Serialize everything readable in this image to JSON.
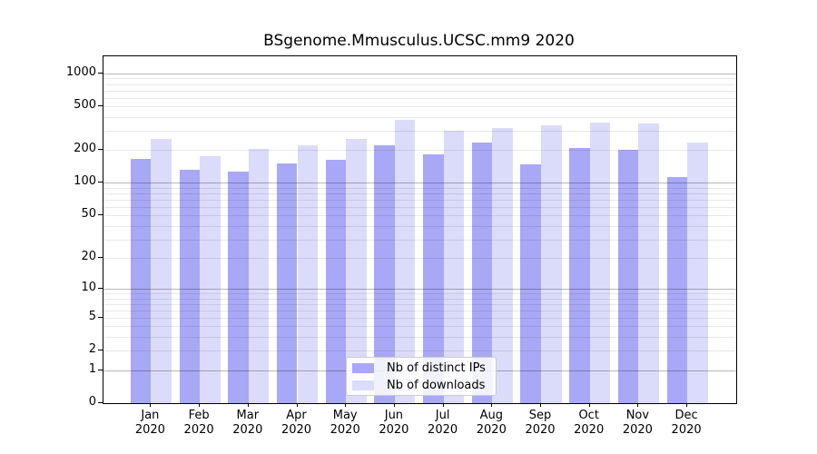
{
  "figure": {
    "title": "BSgenome.Mmusculus.UCSC.mm9 2020"
  },
  "chart_data": {
    "type": "bar",
    "title": "BSgenome.Mmusculus.UCSC.mm9 2020",
    "categories": [
      "Jan",
      "Feb",
      "Mar",
      "Apr",
      "May",
      "Jun",
      "Jul",
      "Aug",
      "Sep",
      "Oct",
      "Nov",
      "Dec"
    ],
    "year_label": "2020",
    "series": [
      {
        "name": "Nb of distinct IPs",
        "color": "#a8a8f6",
        "values": [
          165,
          132,
          126,
          150,
          162,
          222,
          182,
          236,
          148,
          210,
          200,
          114
        ]
      },
      {
        "name": "Nb of downloads",
        "color": "#dbdbfa",
        "values": [
          253,
          177,
          204,
          220,
          255,
          374,
          300,
          315,
          339,
          355,
          348,
          232
        ]
      }
    ],
    "yscale": "log1p",
    "ylim": [
      0,
      1430
    ],
    "yticks": [
      0,
      1,
      2,
      5,
      10,
      20,
      50,
      100,
      200,
      500,
      1000
    ],
    "grid": {
      "major": [
        1,
        10,
        100,
        1000
      ],
      "minor": [
        2,
        3,
        4,
        5,
        6,
        7,
        8,
        9,
        20,
        30,
        40,
        50,
        60,
        70,
        80,
        90,
        200,
        300,
        400,
        500,
        600,
        700,
        800,
        900
      ]
    },
    "legend": {
      "position": "lower-center"
    }
  }
}
